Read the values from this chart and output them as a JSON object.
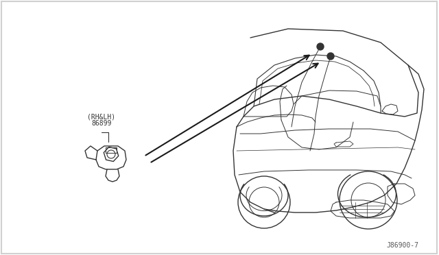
{
  "background_color": "#ffffff",
  "border_color": "#d0d0d0",
  "label_part_number": "86899",
  "label_side": "(RH&LH)",
  "diagram_code": "J86900-7",
  "arrow_color": "#1a1a1a",
  "line_color": "#2a2a2a",
  "car_line_color": "#333333",
  "figsize": [
    6.4,
    3.72
  ],
  "dpi": 100
}
